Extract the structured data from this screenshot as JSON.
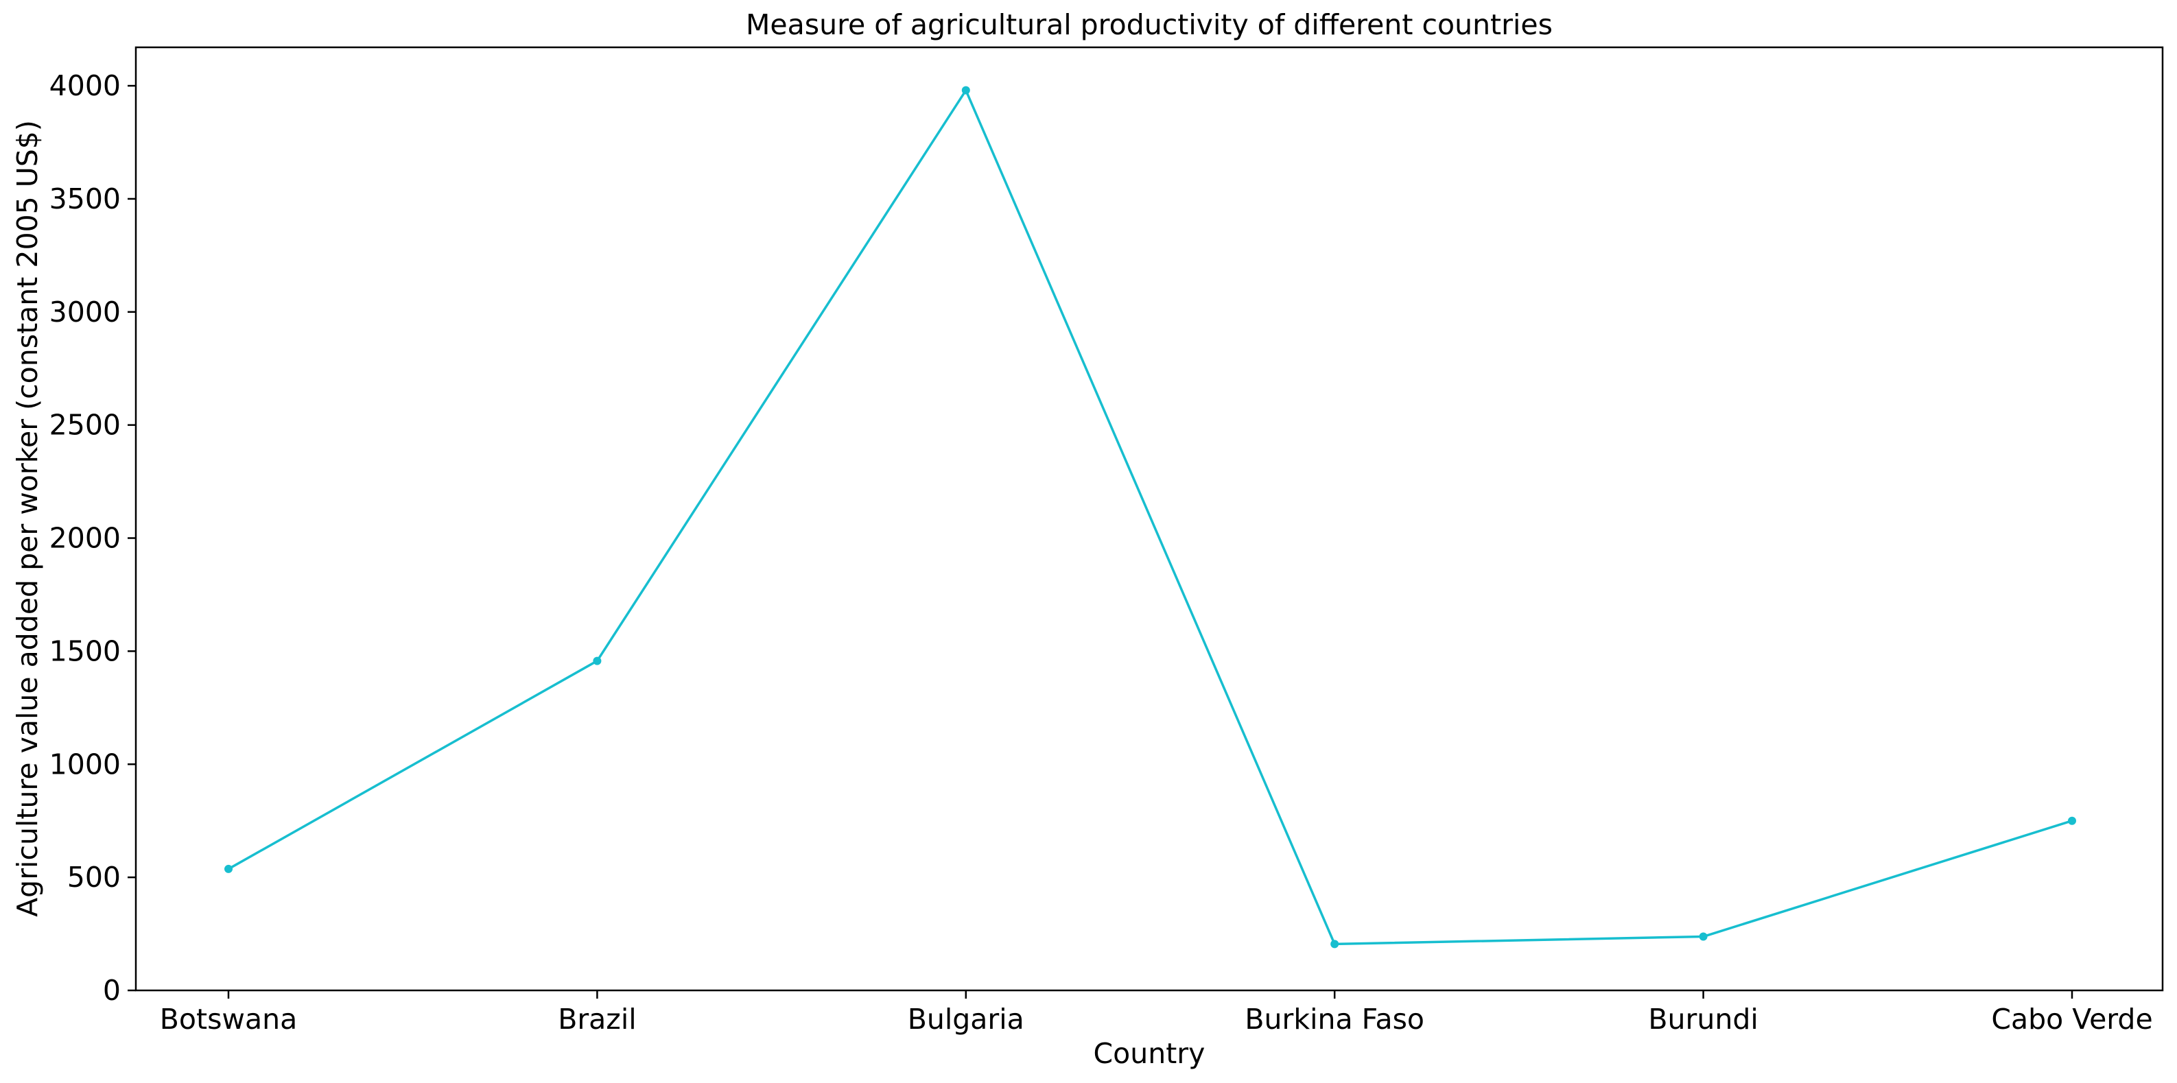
{
  "chart_data": {
    "type": "line",
    "title": "Measure of agricultural productivity of different countries",
    "xlabel": "Country",
    "ylabel": "Agriculture value added per worker (constant 2005 US$)",
    "categories": [
      "Botswana",
      "Brazil",
      "Bulgaria",
      "Burkina Faso",
      "Burundi",
      "Cabo Verde"
    ],
    "series": [
      {
        "values": [
          537,
          1457,
          3980,
          205,
          238,
          750
        ]
      }
    ],
    "ylim": [
      0,
      4170
    ],
    "yticks": [
      0,
      500,
      1000,
      1500,
      2000,
      2500,
      3000,
      3500,
      4000
    ],
    "ytick_labels": [
      "0",
      "500",
      "1000",
      "1500",
      "2000",
      "2500",
      "3000",
      "3500",
      "4000"
    ],
    "grid": false,
    "line_color": "#17becf",
    "marker": "circle"
  }
}
